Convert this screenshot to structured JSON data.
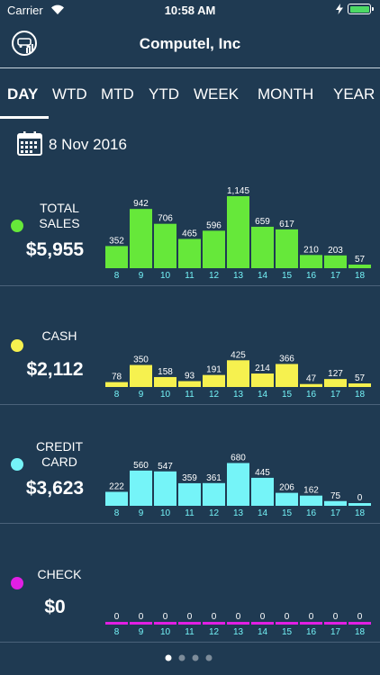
{
  "status_bar": {
    "carrier": "Carrier",
    "time": "10:58 AM"
  },
  "header": {
    "title": "Computel, Inc"
  },
  "tabs": [
    {
      "label": "DAY",
      "active": true
    },
    {
      "label": "WTD",
      "active": false
    },
    {
      "label": "MTD",
      "active": false
    },
    {
      "label": "YTD",
      "active": false
    },
    {
      "label": "WEEK",
      "active": false
    },
    {
      "label": "MONTH",
      "active": false
    },
    {
      "label": "YEAR",
      "active": false
    }
  ],
  "date": "8 Nov 2016",
  "sections": [
    {
      "label": [
        "TOTAL",
        "SALES"
      ],
      "amount": "$5,955",
      "color": "#66e83a"
    },
    {
      "label": [
        "CASH"
      ],
      "amount": "$2,112",
      "color": "#f6f14f"
    },
    {
      "label": [
        "CREDIT",
        "CARD"
      ],
      "amount": "$3,623",
      "color": "#75f4f8"
    },
    {
      "label": [
        "CHECK"
      ],
      "amount": "$0",
      "color": "#e11fe3"
    }
  ],
  "chart_data": [
    {
      "type": "bar",
      "name": "TOTAL SALES",
      "categories": [
        "8",
        "9",
        "10",
        "11",
        "12",
        "13",
        "14",
        "15",
        "16",
        "17",
        "18"
      ],
      "values": [
        352,
        942,
        706,
        465,
        596,
        1145,
        659,
        617,
        210,
        203,
        57
      ],
      "value_labels": [
        "352",
        "942",
        "706",
        "465",
        "596",
        "1,145",
        "659",
        "617",
        "210",
        "203",
        "57"
      ],
      "color": "#66e83a",
      "label_color": "#75f4f8"
    },
    {
      "type": "bar",
      "name": "CASH",
      "categories": [
        "8",
        "9",
        "10",
        "11",
        "12",
        "13",
        "14",
        "15",
        "16",
        "17",
        "18"
      ],
      "values": [
        78,
        350,
        158,
        93,
        191,
        425,
        214,
        366,
        47,
        127,
        57
      ],
      "value_labels": [
        "78",
        "350",
        "158",
        "93",
        "191",
        "425",
        "214",
        "366",
        "47",
        "127",
        "57"
      ],
      "color": "#f6f14f",
      "label_color": "#75f4f8"
    },
    {
      "type": "bar",
      "name": "CREDIT CARD",
      "categories": [
        "8",
        "9",
        "10",
        "11",
        "12",
        "13",
        "14",
        "15",
        "16",
        "17",
        "18"
      ],
      "values": [
        222,
        560,
        547,
        359,
        361,
        680,
        445,
        206,
        162,
        75,
        0
      ],
      "value_labels": [
        "222",
        "560",
        "547",
        "359",
        "361",
        "680",
        "445",
        "206",
        "162",
        "75",
        "0"
      ],
      "color": "#75f4f8",
      "label_color": "#75f4f8"
    },
    {
      "type": "bar",
      "name": "CHECK",
      "categories": [
        "8",
        "9",
        "10",
        "11",
        "12",
        "13",
        "14",
        "15",
        "16",
        "17",
        "18"
      ],
      "values": [
        0,
        0,
        0,
        0,
        0,
        0,
        0,
        0,
        0,
        0,
        0
      ],
      "value_labels": [
        "0",
        "0",
        "0",
        "0",
        "0",
        "0",
        "0",
        "0",
        "0",
        "0",
        "0"
      ],
      "color": "#e11fe3",
      "label_color": "#75f4f8"
    }
  ],
  "page_indicator": {
    "count": 4,
    "active": 0
  }
}
